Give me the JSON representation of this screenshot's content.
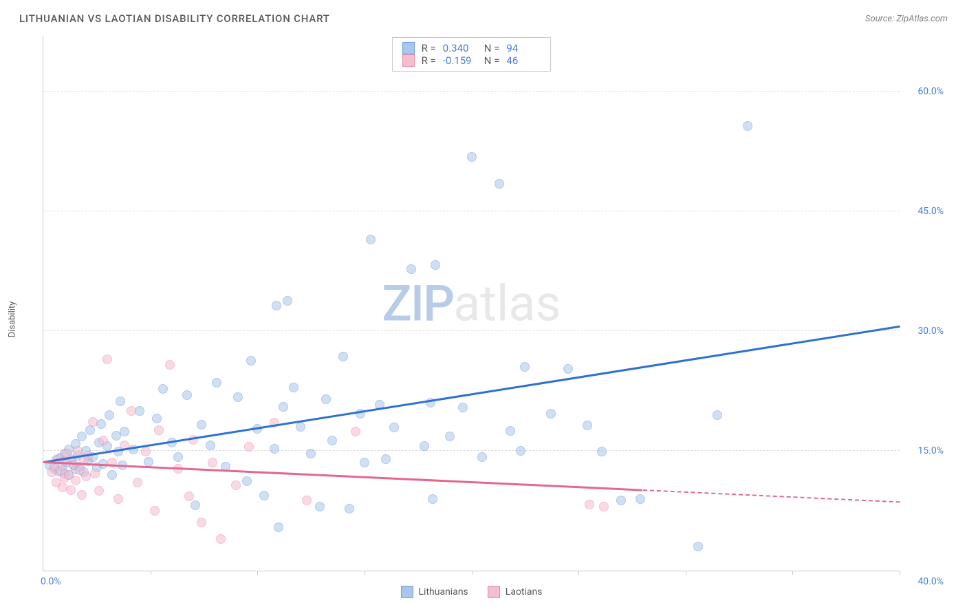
{
  "header": {
    "title": "LITHUANIAN VS LAOTIAN DISABILITY CORRELATION CHART",
    "source": "Source: ZipAtlas.com"
  },
  "ylabel": "Disability",
  "watermark": {
    "bold": "ZIP",
    "light": "atlas"
  },
  "chart": {
    "type": "scatter",
    "xlim": [
      0,
      40
    ],
    "ylim": [
      0,
      67
    ],
    "xtick_step": 5,
    "xticks_visible_positions": [
      5,
      10,
      15,
      20,
      25,
      30,
      35,
      40
    ],
    "ygrid_positions": [
      15,
      30,
      45,
      60
    ],
    "ytick_labels": [
      "15.0%",
      "30.0%",
      "45.0%",
      "60.0%"
    ],
    "origin_label": "0.0%",
    "xmax_label": "40.0%",
    "background_color": "#ffffff",
    "grid_color": "#dcdcdc",
    "axis_color": "#c9c9c9",
    "tick_label_color": "#4a7fd8",
    "marker_radius": 7,
    "marker_opacity": 0.55,
    "series": [
      {
        "name": "Lithuanians",
        "fill": "#a9c6ec",
        "stroke": "#6f9edb",
        "trend": {
          "color": "#2e6fd6",
          "x0": 0,
          "y0": 13.5,
          "x1": 40,
          "y1": 30.5,
          "dash_from_x": null
        },
        "stats": {
          "R": "0.340",
          "N": "94"
        },
        "points": [
          [
            0.3,
            13.2
          ],
          [
            0.5,
            12.8
          ],
          [
            0.6,
            13.9
          ],
          [
            0.7,
            12.4
          ],
          [
            0.8,
            14.1
          ],
          [
            0.9,
            13.0
          ],
          [
            1.0,
            12.2
          ],
          [
            1.0,
            14.7
          ],
          [
            1.1,
            13.5
          ],
          [
            1.2,
            12.0
          ],
          [
            1.2,
            15.2
          ],
          [
            1.3,
            14.0
          ],
          [
            1.4,
            13.2
          ],
          [
            1.5,
            12.7
          ],
          [
            1.5,
            15.9
          ],
          [
            1.6,
            14.4
          ],
          [
            1.7,
            13.0
          ],
          [
            1.8,
            16.8
          ],
          [
            1.9,
            12.3
          ],
          [
            2.0,
            15.0
          ],
          [
            2.1,
            13.7
          ],
          [
            2.2,
            17.6
          ],
          [
            2.3,
            14.2
          ],
          [
            2.5,
            12.9
          ],
          [
            2.6,
            16.0
          ],
          [
            2.7,
            18.4
          ],
          [
            2.8,
            13.4
          ],
          [
            3.0,
            15.6
          ],
          [
            3.1,
            19.5
          ],
          [
            3.2,
            12.0
          ],
          [
            3.4,
            16.9
          ],
          [
            3.5,
            14.9
          ],
          [
            3.6,
            21.2
          ],
          [
            3.7,
            13.2
          ],
          [
            3.8,
            17.4
          ],
          [
            4.2,
            15.2
          ],
          [
            4.5,
            20.0
          ],
          [
            4.9,
            13.6
          ],
          [
            5.3,
            19.1
          ],
          [
            5.6,
            22.8
          ],
          [
            6.0,
            16.0
          ],
          [
            6.3,
            14.2
          ],
          [
            6.7,
            22.0
          ],
          [
            7.1,
            8.2
          ],
          [
            7.4,
            18.3
          ],
          [
            7.8,
            15.7
          ],
          [
            8.1,
            23.5
          ],
          [
            8.5,
            13.0
          ],
          [
            9.1,
            21.7
          ],
          [
            9.5,
            11.2
          ],
          [
            9.7,
            26.3
          ],
          [
            10.0,
            17.8
          ],
          [
            10.3,
            9.4
          ],
          [
            10.8,
            15.3
          ],
          [
            10.9,
            33.2
          ],
          [
            11.0,
            5.4
          ],
          [
            11.2,
            20.5
          ],
          [
            11.4,
            33.8
          ],
          [
            11.7,
            22.9
          ],
          [
            12.0,
            18.0
          ],
          [
            12.5,
            14.7
          ],
          [
            12.9,
            8.0
          ],
          [
            13.2,
            21.5
          ],
          [
            13.5,
            16.3
          ],
          [
            14.0,
            26.8
          ],
          [
            14.3,
            7.8
          ],
          [
            14.8,
            19.7
          ],
          [
            15.0,
            13.5
          ],
          [
            15.3,
            41.5
          ],
          [
            15.7,
            20.8
          ],
          [
            16.0,
            14.0
          ],
          [
            16.4,
            17.9
          ],
          [
            17.2,
            37.8
          ],
          [
            17.8,
            15.6
          ],
          [
            18.1,
            21.0
          ],
          [
            18.3,
            38.3
          ],
          [
            18.2,
            9.0
          ],
          [
            19.0,
            16.8
          ],
          [
            19.6,
            20.4
          ],
          [
            20.0,
            51.8
          ],
          [
            20.5,
            14.2
          ],
          [
            21.3,
            48.5
          ],
          [
            21.8,
            17.5
          ],
          [
            22.3,
            15.0
          ],
          [
            22.5,
            25.5
          ],
          [
            23.7,
            19.7
          ],
          [
            24.5,
            25.3
          ],
          [
            25.4,
            18.2
          ],
          [
            26.1,
            14.9
          ],
          [
            27.0,
            8.8
          ],
          [
            27.9,
            9.0
          ],
          [
            30.6,
            3.0
          ],
          [
            31.5,
            19.5
          ],
          [
            32.9,
            55.7
          ]
        ]
      },
      {
        "name": "Laotians",
        "fill": "#f5bdce",
        "stroke": "#e88fab",
        "trend": {
          "color": "#e6678d",
          "x0": 0,
          "y0": 13.5,
          "x1": 40,
          "y1": 8.5,
          "dash_from_x": 28.0
        },
        "stats": {
          "R": "-0.159",
          "N": "46"
        },
        "points": [
          [
            0.4,
            12.3
          ],
          [
            0.5,
            13.1
          ],
          [
            0.6,
            11.0
          ],
          [
            0.7,
            14.0
          ],
          [
            0.8,
            12.5
          ],
          [
            0.9,
            10.4
          ],
          [
            1.0,
            13.7
          ],
          [
            1.0,
            11.6
          ],
          [
            1.1,
            14.7
          ],
          [
            1.2,
            12.0
          ],
          [
            1.3,
            10.1
          ],
          [
            1.4,
            13.3
          ],
          [
            1.5,
            11.3
          ],
          [
            1.6,
            15.0
          ],
          [
            1.7,
            12.6
          ],
          [
            1.8,
            9.5
          ],
          [
            1.9,
            13.9
          ],
          [
            2.0,
            11.8
          ],
          [
            2.1,
            14.4
          ],
          [
            2.3,
            18.6
          ],
          [
            2.4,
            12.2
          ],
          [
            2.6,
            10.0
          ],
          [
            2.8,
            16.3
          ],
          [
            3.0,
            26.5
          ],
          [
            3.2,
            13.5
          ],
          [
            3.5,
            9.0
          ],
          [
            3.8,
            15.7
          ],
          [
            4.1,
            20.0
          ],
          [
            4.4,
            11.0
          ],
          [
            4.8,
            14.9
          ],
          [
            5.2,
            7.5
          ],
          [
            5.4,
            17.6
          ],
          [
            5.9,
            25.8
          ],
          [
            6.3,
            12.8
          ],
          [
            6.8,
            9.3
          ],
          [
            7.0,
            16.4
          ],
          [
            7.4,
            6.0
          ],
          [
            7.9,
            13.5
          ],
          [
            8.3,
            4.0
          ],
          [
            9.0,
            10.7
          ],
          [
            9.6,
            15.5
          ],
          [
            10.8,
            18.5
          ],
          [
            12.3,
            8.8
          ],
          [
            14.6,
            17.4
          ],
          [
            25.5,
            8.3
          ],
          [
            26.2,
            8.0
          ]
        ]
      }
    ]
  },
  "stats_box": {
    "rows": [
      {
        "swatch_fill": "#a9c6ec",
        "swatch_stroke": "#6f9edb",
        "R": "0.340",
        "N": "94"
      },
      {
        "swatch_fill": "#f5bdce",
        "swatch_stroke": "#e88fab",
        "R": "-0.159",
        "N": "46"
      }
    ],
    "label_R": "R =",
    "label_N": "N ="
  },
  "bottom_legend": [
    {
      "label": "Lithuanians",
      "fill": "#a9c6ec",
      "stroke": "#6f9edb"
    },
    {
      "label": "Laotians",
      "fill": "#f5bdce",
      "stroke": "#e88fab"
    }
  ]
}
